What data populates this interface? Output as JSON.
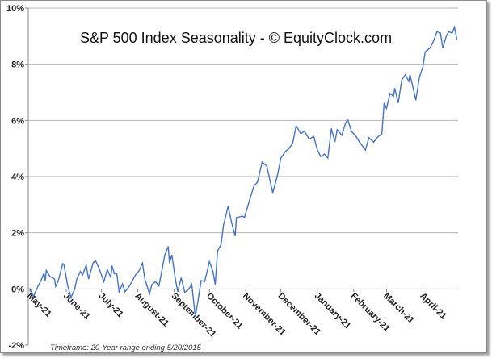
{
  "chart_data": {
    "type": "line",
    "title": "S&P 500 Index Seasonality - © EquityClock.com",
    "footnote": "Timeframe: 20-Year range ending 5/20/2015",
    "xlabel": "",
    "ylabel": "",
    "ylim": [
      -2,
      10
    ],
    "yticks": [
      -2,
      0,
      2,
      4,
      6,
      8,
      10
    ],
    "ytick_labels": [
      "-2%",
      "0%",
      "2%",
      "4%",
      "6%",
      "8%",
      "10%"
    ],
    "xtick_labels": [
      "May-21",
      "June-21",
      "July-21",
      "August-21",
      "September-21",
      "October-21",
      "November-21",
      "December-21",
      "January-21",
      "February-21",
      "March-21",
      "April-21"
    ],
    "grid": true,
    "line_color": "#4472c4",
    "series": [
      {
        "x": [
          "05-21",
          "05-24",
          "05-28",
          "05-30",
          "06-02",
          "06-03",
          "06-04",
          "06-07",
          "06-11",
          "06-12",
          "06-14",
          "06-18",
          "06-19",
          "06-22",
          "06-25",
          "06-28",
          "06-30",
          "07-03",
          "07-05",
          "07-08",
          "07-10",
          "07-14",
          "07-16",
          "07-19",
          "07-23",
          "07-26",
          "07-29",
          "07-30",
          "08-01",
          "08-03",
          "08-05",
          "08-08",
          "08-10",
          "08-13",
          "08-16",
          "08-19",
          "08-22",
          "08-25",
          "08-27",
          "08-31",
          "09-02",
          "09-05",
          "09-08",
          "09-10",
          "09-13",
          "09-16",
          "09-17",
          "09-19",
          "09-22",
          "09-24",
          "09-27",
          "09-30",
          "10-03",
          "10-06",
          "10-09",
          "10-11",
          "10-14",
          "10-17",
          "10-21",
          "10-24",
          "10-26",
          "10-28",
          "10-31",
          "11-02",
          "11-06",
          "11-09",
          "11-12",
          "11-13",
          "11-18",
          "11-20",
          "11-25",
          "11-28",
          "12-01",
          "12-05",
          "12-09",
          "12-12",
          "12-14",
          "12-18",
          "12-21",
          "12-25",
          "12-28",
          "12-31",
          "01-03",
          "01-07",
          "01-10",
          "01-14",
          "01-18",
          "01-21",
          "01-24",
          "01-27",
          "01-30",
          "02-02",
          "02-05",
          "02-07",
          "02-11",
          "02-14",
          "02-16",
          "02-19",
          "02-23",
          "02-26",
          "03-03",
          "03-06",
          "03-10",
          "03-14",
          "03-17",
          "03-19",
          "03-21",
          "03-24",
          "03-27",
          "03-28",
          "03-31",
          "04-03",
          "04-06",
          "04-09",
          "04-10",
          "04-13",
          "04-15",
          "04-18",
          "04-21",
          "04-23",
          "04-27",
          "04-30",
          "05-03",
          "05-06",
          "05-08",
          "05-11",
          "05-13",
          "05-16",
          "05-18",
          "05-20"
        ],
        "y": [
          0.02,
          -0.27,
          0.11,
          0.26,
          0.56,
          0.3,
          0.66,
          0.45,
          0.35,
          0.09,
          0.26,
          0.9,
          0.88,
          0.16,
          -0.31,
          -0.03,
          0.35,
          0.62,
          0.5,
          0.85,
          0.35,
          0.94,
          1.0,
          0.73,
          0.26,
          0.69,
          0.4,
          0.83,
          0.54,
          0.56,
          -0.1,
          0.18,
          -0.1,
          0.05,
          0.26,
          0.5,
          0.64,
          0.92,
          0.35,
          -0.17,
          0.16,
          0.26,
          0.11,
          0.54,
          1.21,
          1.51,
          0.92,
          1.21,
          0.35,
          -0.1,
          0.4,
          -0.12,
          -0.03,
          0.16,
          -0.98,
          -0.5,
          0.3,
          0.26,
          0.97,
          0.64,
          0.16,
          1.35,
          1.59,
          2.26,
          2.94,
          2.35,
          1.88,
          2.54,
          2.59,
          2.55,
          3.27,
          3.66,
          3.8,
          4.52,
          4.37,
          3.8,
          3.42,
          4.04,
          4.66,
          4.9,
          5.0,
          5.19,
          5.81,
          5.52,
          5.62,
          5.33,
          5.43,
          4.95,
          4.71,
          4.8,
          4.66,
          5.71,
          5.23,
          5.67,
          5.47,
          5.9,
          6.02,
          5.62,
          5.43,
          5.23,
          4.95,
          5.38,
          5.23,
          5.43,
          5.52,
          6.62,
          6.43,
          6.96,
          6.86,
          7.15,
          6.62,
          7.44,
          7.63,
          7.39,
          7.63,
          7.1,
          6.72,
          7.53,
          7.91,
          8.44,
          8.58,
          8.82,
          9.16,
          9.11,
          8.58,
          9.01,
          9.16,
          9.11,
          9.32,
          8.89
        ]
      }
    ]
  }
}
